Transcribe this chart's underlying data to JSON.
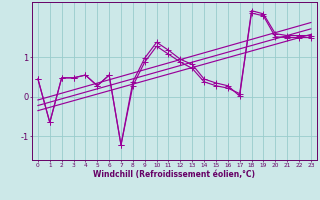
{
  "background_color": "#cce8e8",
  "grid_color": "#99cccc",
  "line_color": "#990099",
  "spine_color": "#660066",
  "tick_color": "#660066",
  "x_data": [
    0,
    1,
    2,
    3,
    4,
    5,
    6,
    7,
    8,
    9,
    10,
    11,
    12,
    13,
    14,
    15,
    16,
    17,
    18,
    19,
    20,
    21,
    22,
    23
  ],
  "y_line1": [
    0.45,
    -0.65,
    0.48,
    0.48,
    0.55,
    0.28,
    0.55,
    -1.22,
    0.28,
    0.88,
    1.28,
    1.08,
    0.88,
    0.72,
    0.38,
    0.28,
    0.22,
    0.08,
    2.12,
    2.05,
    1.52,
    1.5,
    1.5,
    1.5
  ],
  "y_line2": [
    0.45,
    -0.65,
    0.48,
    0.48,
    0.55,
    0.28,
    0.55,
    -1.22,
    0.38,
    0.98,
    1.38,
    1.18,
    0.95,
    0.82,
    0.45,
    0.35,
    0.28,
    0.02,
    2.18,
    2.1,
    1.6,
    1.55,
    1.55,
    1.55
  ],
  "trend_lines": [
    [
      -0.35,
      1.58
    ],
    [
      -0.22,
      1.72
    ],
    [
      -0.08,
      1.88
    ]
  ],
  "xlim": [
    -0.5,
    23.5
  ],
  "ylim": [
    -1.6,
    2.4
  ],
  "yticks": [
    -1,
    0,
    1
  ],
  "xtick_labels": [
    "0",
    "1",
    "2",
    "3",
    "4",
    "5",
    "6",
    "7",
    "8",
    "9",
    "10",
    "11",
    "12",
    "13",
    "14",
    "15",
    "16",
    "17",
    "18",
    "19",
    "20",
    "21",
    "22",
    "23"
  ],
  "xlabel": "Windchill (Refroidissement éolien,°C)",
  "xlabel_fontsize": 5.5,
  "xtick_fontsize": 4.2,
  "ytick_fontsize": 6.0,
  "linewidth": 0.85,
  "markersize": 2.2
}
